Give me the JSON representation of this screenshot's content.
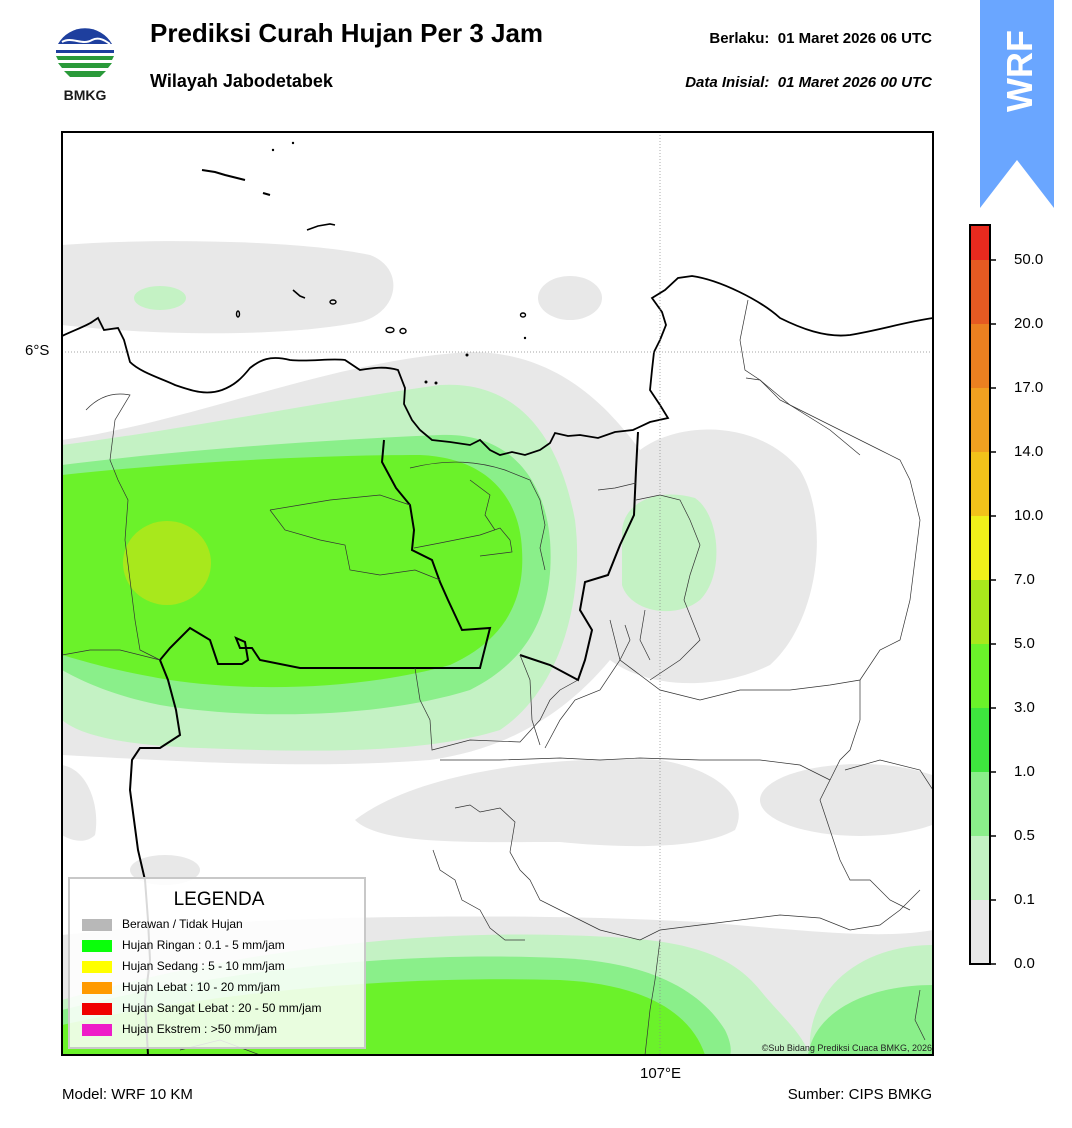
{
  "header": {
    "logo_text": "BMKG",
    "title": "Prediksi Curah Hujan Per 3 Jam",
    "subtitle": "Wilayah Jabodetabek",
    "valid_label": "Berlaku:",
    "valid_time": "01 Maret 2026 06 UTC",
    "init_label": "Data Inisial:",
    "init_time": "01 Maret 2026 00 UTC",
    "banner_text": "WRF"
  },
  "map": {
    "lat_label": "6°S",
    "lon_label": "107°E",
    "credit": "©Sub Bidang Prediksi Cuaca BMKG, 2026"
  },
  "legend": {
    "title": "LEGENDA",
    "items": [
      {
        "label": "Berawan / Tidak Hujan",
        "color": "#b8b8b8"
      },
      {
        "label": "Hujan Ringan : 0.1 - 5 mm/jam",
        "color": "#0aff0a"
      },
      {
        "label": "Hujan Sedang : 5 - 10 mm/jam",
        "color": "#ffff00"
      },
      {
        "label": "Hujan Lebat : 10 - 20 mm/jam",
        "color": "#ff9a00"
      },
      {
        "label": "Hujan Sangat Lebat : 20 - 50 mm/jam",
        "color": "#f00000"
      },
      {
        "label": "Hujan Ekstrem : >50 mm/jam",
        "color": "#ee1cc8"
      }
    ]
  },
  "colorbar": {
    "ticks": [
      "0.0",
      "0.1",
      "0.5",
      "1.0",
      "3.0",
      "5.0",
      "7.0",
      "10.0",
      "14.0",
      "17.0",
      "20.0",
      "50.0"
    ],
    "colors": [
      "#e8e8e8",
      "#c4f2c4",
      "#8aef8a",
      "#3ee63e",
      "#6bf22a",
      "#a8e81c",
      "#f0f01a",
      "#f2c21a",
      "#f0a020",
      "#ea8020",
      "#e45a22",
      "#e82a1e",
      "#e81fc6"
    ]
  },
  "footer": {
    "model": "Model: WRF 10 KM",
    "source": "Sumber: CIPS BMKG"
  }
}
